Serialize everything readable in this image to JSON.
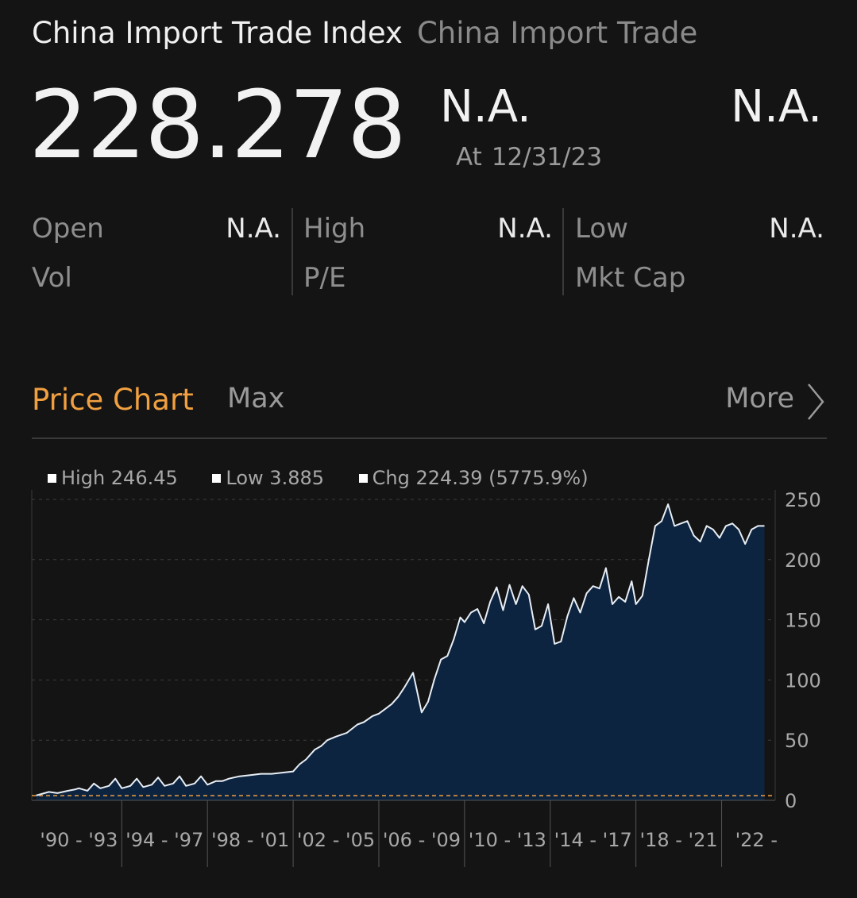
{
  "header": {
    "title": "China Import Trade Index",
    "subtitle": "China Import Trade"
  },
  "quote": {
    "price": "228.278",
    "change": "N.A.",
    "change_pct": "N.A.",
    "as_of_label": "At",
    "as_of_date": "12/31/23"
  },
  "stats": [
    [
      {
        "label": "Open",
        "value": "N.A."
      },
      {
        "label": "Vol",
        "value": ""
      }
    ],
    [
      {
        "label": "High",
        "value": "N.A."
      },
      {
        "label": "P/E",
        "value": ""
      }
    ],
    [
      {
        "label": "Low",
        "value": "N.A."
      },
      {
        "label": "Mkt Cap",
        "value": ""
      }
    ]
  ],
  "tabs": {
    "price_chart": "Price Chart",
    "range": "Max",
    "more": "More"
  },
  "legend": {
    "high": "High 246.45",
    "low": "Low 3.885",
    "chg": "Chg 224.39 (5775.9%)"
  },
  "colors": {
    "accent": "#f0a040",
    "area_fill": "#0d2440",
    "line": "#e8eef5",
    "baseline": "#f0a040"
  },
  "chart_data": {
    "type": "area",
    "ylim": [
      0,
      250
    ],
    "yticks": [
      0,
      50,
      100,
      150,
      200,
      250
    ],
    "xlim": [
      1989.8,
      2024.5
    ],
    "x_periods": [
      "'90 - '93",
      "'94 - '97",
      "'98 - '01",
      "'02 - '05",
      "'06 - '09",
      "'10 - '13",
      "'14 - '17",
      "'18 - '21",
      "'22 -"
    ],
    "baseline_value": 3.885,
    "grid": "horizontal-dashed",
    "series": [
      {
        "x": [
          1990.0,
          1990.6,
          1991.0,
          1991.5,
          1991.8,
          1992.0,
          1992.4,
          1992.7,
          1993.0,
          1993.4,
          1993.7,
          1994.0,
          1994.4,
          1994.7,
          1995.0,
          1995.4,
          1995.7,
          1996.0,
          1996.4,
          1996.7,
          1997.0,
          1997.4,
          1997.7,
          1998.0,
          1998.4,
          1998.7,
          1999.0,
          1999.5,
          2000.0,
          2000.5,
          2001.0,
          2001.5,
          2002.0,
          2002.3,
          2002.6,
          2003.0,
          2003.3,
          2003.6,
          2004.0,
          2004.5,
          2005.0,
          2005.3,
          2005.7,
          2006.0,
          2006.3,
          2006.6,
          2006.9,
          2007.2,
          2007.6,
          2008.0,
          2008.3,
          2008.6,
          2008.9,
          2009.2,
          2009.5,
          2009.8,
          2010.0,
          2010.3,
          2010.6,
          2010.9,
          2011.2,
          2011.5,
          2011.8,
          2012.1,
          2012.4,
          2012.7,
          2013.0,
          2013.3,
          2013.6,
          2013.9,
          2014.2,
          2014.5,
          2014.8,
          2015.1,
          2015.4,
          2015.7,
          2016.0,
          2016.3,
          2016.6,
          2016.9,
          2017.2,
          2017.5,
          2017.8,
          2018.0,
          2018.3,
          2018.6,
          2018.9,
          2019.2,
          2019.5,
          2019.8,
          2020.1,
          2020.4,
          2020.7,
          2021.0,
          2021.3,
          2021.6,
          2021.9,
          2022.2,
          2022.5,
          2022.8,
          2023.1,
          2023.4,
          2023.7,
          2024.0
        ],
        "y": [
          4,
          7,
          6,
          8,
          9,
          10,
          8,
          14,
          10,
          12,
          18,
          10,
          12,
          18,
          11,
          13,
          19,
          12,
          14,
          20,
          12,
          14,
          20,
          13,
          16,
          16,
          18,
          20,
          21,
          22,
          22,
          23,
          24,
          30,
          34,
          42,
          45,
          50,
          53,
          56,
          63,
          65,
          70,
          72,
          76,
          80,
          86,
          94,
          106,
          73,
          82,
          101,
          117,
          120,
          134,
          152,
          148,
          156,
          159,
          147,
          165,
          177,
          158,
          179,
          163,
          178,
          171,
          142,
          145,
          163,
          130,
          132,
          153,
          168,
          156,
          172,
          178,
          176,
          193,
          163,
          169,
          165,
          182,
          163,
          170,
          200,
          228,
          232,
          246,
          228,
          230,
          232,
          220,
          215,
          228,
          225,
          218,
          228,
          230,
          225,
          213,
          225,
          228,
          228
        ]
      }
    ]
  }
}
